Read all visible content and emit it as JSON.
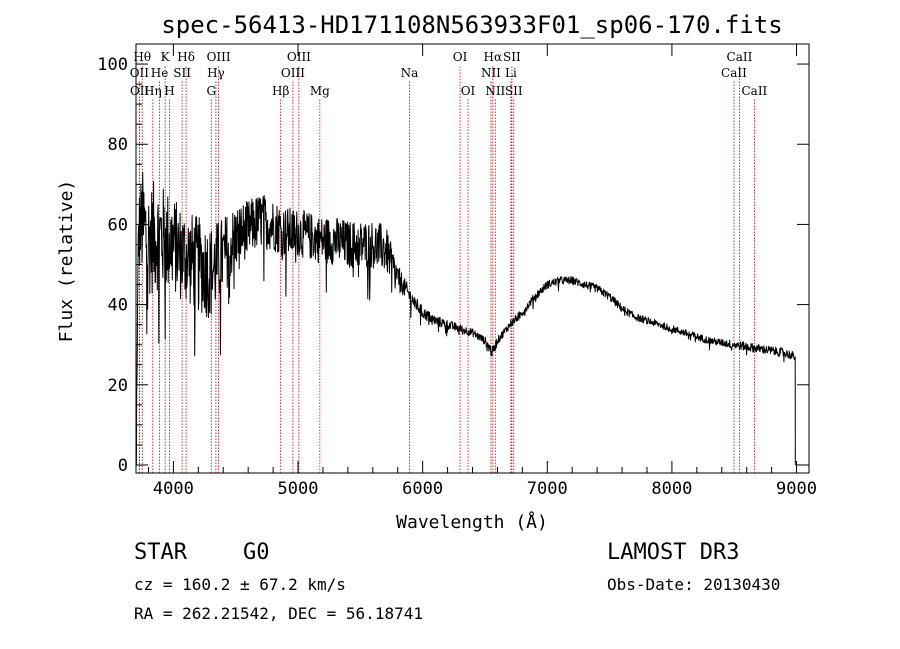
{
  "chart_data": {
    "type": "line",
    "title": "spec-56413-HD171108N563933F01_sp06-170.fits",
    "xlabel": "Wavelength (Å)",
    "ylabel": "Flux (relative)",
    "xlim": [
      3700,
      9100
    ],
    "ylim": [
      -2,
      105
    ],
    "xticks": [
      4000,
      5000,
      6000,
      7000,
      8000,
      9000
    ],
    "yticks": [
      0,
      20,
      40,
      60,
      80,
      100
    ],
    "grid": false,
    "colors": {
      "spectrum": "#000000",
      "line_marker": "#cc0000",
      "axes": "#000000"
    },
    "spectrum_envelope": {
      "x": [
        3700,
        3720,
        3750,
        3800,
        3850,
        3900,
        3950,
        4000,
        4050,
        4100,
        4200,
        4300,
        4400,
        4500,
        4600,
        4700,
        4800,
        4900,
        5000,
        5100,
        5200,
        5300,
        5400,
        5500,
        5600,
        5700,
        5800,
        5900,
        6000,
        6100,
        6200,
        6300,
        6400,
        6500,
        6560,
        6600,
        6700,
        6800,
        6900,
        7000,
        7100,
        7200,
        7300,
        7400,
        7500,
        7600,
        7700,
        7800,
        7900,
        8000,
        8100,
        8200,
        8300,
        8400,
        8500,
        8600,
        8700,
        8800,
        8900,
        8990
      ],
      "y": [
        0,
        58,
        60,
        56,
        57,
        57,
        56,
        55,
        53,
        52,
        50,
        48,
        52,
        57,
        59,
        61,
        60,
        58,
        58,
        57,
        56,
        56,
        55,
        55,
        55,
        54,
        47,
        42,
        38,
        36,
        35,
        34,
        33,
        31,
        28,
        31,
        35,
        38,
        42,
        45,
        46,
        46,
        45,
        44,
        42,
        39,
        37,
        36,
        35,
        34,
        33,
        32,
        31,
        30.5,
        30,
        29.5,
        29,
        28.5,
        28,
        27
      ],
      "noise": [
        0,
        10,
        14,
        14,
        14,
        13,
        13,
        12,
        12,
        12,
        12,
        12,
        10,
        8,
        7,
        7,
        6.5,
        6.5,
        6,
        6,
        6,
        6,
        6,
        6,
        6,
        6,
        3,
        2,
        1.5,
        1.3,
        1.2,
        1.1,
        1,
        1,
        1.5,
        1,
        1,
        1,
        1,
        1,
        1,
        1,
        1,
        1,
        1,
        1,
        0.9,
        0.9,
        0.9,
        0.9,
        0.9,
        0.9,
        0.9,
        0.9,
        1.1,
        1.1,
        1.1,
        1.1,
        1.1,
        1.1
      ]
    },
    "spectral_lines": [
      {
        "label": "OII",
        "wl": 3727,
        "row": 1
      },
      {
        "label": "OII",
        "wl": 3729,
        "row": 2
      },
      {
        "label": "Hθ",
        "wl": 3750,
        "row": 0
      },
      {
        "label": "Hη",
        "wl": 3835,
        "row": 2
      },
      {
        "label": "He",
        "wl": 3889,
        "row": 1
      },
      {
        "label": "K",
        "wl": 3934,
        "row": 0
      },
      {
        "label": "H",
        "wl": 3969,
        "row": 2
      },
      {
        "label": "SII",
        "wl": 4070,
        "row": 1
      },
      {
        "label": "Hδ",
        "wl": 4102,
        "row": 0
      },
      {
        "label": "G",
        "wl": 4304,
        "row": 2
      },
      {
        "label": "Hγ",
        "wl": 4341,
        "row": 1
      },
      {
        "label": "OIII",
        "wl": 4363,
        "row": 0
      },
      {
        "label": "Hβ",
        "wl": 4861,
        "row": 2
      },
      {
        "label": "OIII",
        "wl": 4959,
        "row": 1
      },
      {
        "label": "OIII",
        "wl": 5007,
        "row": 0
      },
      {
        "label": "Mg",
        "wl": 5175,
        "row": 2
      },
      {
        "label": "Na",
        "wl": 5894,
        "row": 1
      },
      {
        "label": "OI",
        "wl": 6300,
        "row": 0
      },
      {
        "label": "OI",
        "wl": 6364,
        "row": 2
      },
      {
        "label": "NII",
        "wl": 6548,
        "row": 1
      },
      {
        "label": "Hα",
        "wl": 6563,
        "row": 0
      },
      {
        "label": "NII",
        "wl": 6583,
        "row": 2
      },
      {
        "label": "SII",
        "wl": 6716,
        "row": 0
      },
      {
        "label": "Li",
        "wl": 6708,
        "row": 1
      },
      {
        "label": "SII",
        "wl": 6731,
        "row": 2
      },
      {
        "label": "CaII",
        "wl": 8498,
        "row": 1
      },
      {
        "label": "CaII",
        "wl": 8542,
        "row": 0
      },
      {
        "label": "CaII",
        "wl": 8662,
        "row": 2
      }
    ]
  },
  "info": {
    "object_class": "STAR",
    "subclass": "G0",
    "survey": "LAMOST DR3",
    "redshift": "cz = 160.2 ± 67.2 km/s",
    "obs_date": "Obs-Date: 20130430",
    "coords": "RA = 262.21542, DEC =  56.18741"
  }
}
